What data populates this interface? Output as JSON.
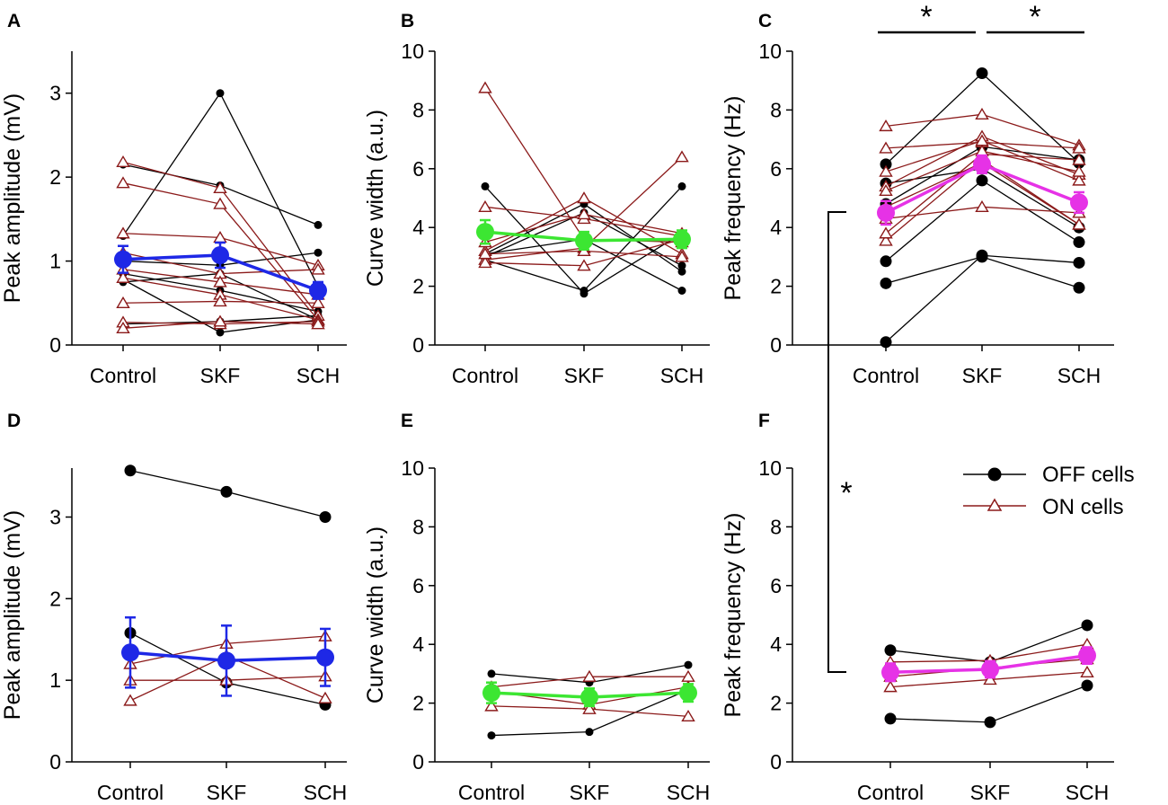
{
  "figure_title": "",
  "colors": {
    "off": "#000000",
    "on": "#8B1A1A",
    "mean_amplitude": "#1E28E6",
    "mean_width": "#3CE632",
    "mean_frequency": "#E632E6"
  },
  "legend": {
    "off_label": "OFF cells",
    "on_label": "ON cells"
  },
  "significance": {
    "star": "*"
  },
  "chart_data": [
    {
      "id": "A",
      "letter": "A",
      "type": "line",
      "categories": [
        "Control",
        "SKF",
        "SCH"
      ],
      "ylabel": "Peak amplitude (mV)",
      "ylim": [
        0,
        3.5
      ],
      "yticks": [
        0,
        1,
        2,
        3
      ],
      "ytick_labels": [
        "0",
        "1",
        "2",
        "3"
      ],
      "off_series": [
        [
          1.3,
          3.0,
          0.7
        ],
        [
          2.15,
          1.9,
          1.43
        ],
        [
          0.78,
          0.15,
          0.3
        ],
        [
          1.0,
          0.95,
          1.1
        ],
        [
          0.85,
          0.65,
          0.4
        ],
        [
          0.75,
          0.85,
          0.3
        ],
        [
          0.25,
          0.28,
          0.35
        ]
      ],
      "on_series": [
        [
          2.18,
          1.87,
          0.35
        ],
        [
          1.93,
          1.68,
          0.3
        ],
        [
          1.33,
          1.28,
          0.95
        ],
        [
          1.1,
          0.85,
          0.9
        ],
        [
          0.9,
          0.75,
          0.6
        ],
        [
          0.8,
          0.6,
          0.3
        ],
        [
          0.5,
          0.52,
          0.5
        ],
        [
          0.27,
          0.25,
          0.28
        ],
        [
          0.2,
          0.28,
          0.25
        ]
      ],
      "mean": [
        1.02,
        1.07,
        0.65
      ],
      "sem": [
        0.16,
        0.15,
        0.1
      ]
    },
    {
      "id": "B",
      "letter": "B",
      "type": "line",
      "categories": [
        "Control",
        "SKF",
        "SCH"
      ],
      "ylabel": "Curve width (a.u.)",
      "ylim": [
        0,
        10
      ],
      "yticks": [
        0,
        2,
        4,
        6,
        8,
        10
      ],
      "ytick_labels": [
        "0",
        "2",
        "4",
        "6",
        "8",
        "10"
      ],
      "off_series": [
        [
          5.4,
          1.75,
          3.8
        ],
        [
          3.1,
          4.8,
          2.5
        ],
        [
          2.9,
          1.85,
          5.4
        ],
        [
          3.1,
          3.6,
          1.85
        ],
        [
          3.0,
          4.5,
          2.7
        ]
      ],
      "on_series": [
        [
          8.75,
          3.6,
          3.5
        ],
        [
          4.7,
          4.3,
          3.7
        ],
        [
          3.2,
          5.0,
          3.1
        ],
        [
          2.9,
          3.3,
          6.4
        ],
        [
          2.8,
          2.7,
          3.6
        ],
        [
          3.1,
          3.2,
          3.0
        ],
        [
          3.5,
          4.45,
          3.8
        ]
      ],
      "mean": [
        3.85,
        3.55,
        3.6
      ],
      "sem": [
        0.4,
        0.3,
        0.3
      ]
    },
    {
      "id": "C",
      "letter": "C",
      "type": "line",
      "categories": [
        "Control",
        "SKF",
        "SCH"
      ],
      "ylabel": "Peak frequency (Hz)",
      "ylim": [
        0,
        10
      ],
      "yticks": [
        0,
        2,
        4,
        6,
        8,
        10
      ],
      "ytick_labels": [
        "0",
        "2",
        "4",
        "6",
        "8",
        "10"
      ],
      "off_series": [
        [
          0.1,
          3.05,
          2.8
        ],
        [
          2.1,
          3.0,
          1.95
        ],
        [
          2.85,
          5.6,
          3.5
        ],
        [
          4.8,
          6.75,
          6.3
        ],
        [
          6.15,
          9.25,
          6.2
        ],
        [
          5.5,
          6.0,
          4.0
        ]
      ],
      "on_series": [
        [
          7.45,
          7.85,
          6.8
        ],
        [
          6.7,
          6.9,
          6.7
        ],
        [
          5.4,
          7.1,
          5.8
        ],
        [
          4.3,
          4.7,
          4.5
        ],
        [
          3.55,
          6.3,
          4.1
        ],
        [
          3.8,
          6.5,
          6.3
        ],
        [
          5.9,
          6.95,
          5.6
        ],
        [
          4.7,
          6.2,
          4.1
        ],
        [
          5.25,
          6.6,
          5.9
        ]
      ],
      "mean": [
        4.5,
        6.15,
        4.85
      ],
      "sem": [
        0.4,
        0.3,
        0.35
      ]
    },
    {
      "id": "D",
      "letter": "D",
      "type": "line",
      "categories": [
        "Control",
        "SKF",
        "SCH"
      ],
      "ylabel": "Peak amplitude (mV)",
      "ylim": [
        0,
        3.6
      ],
      "yticks": [
        0,
        1,
        2,
        3
      ],
      "ytick_labels": [
        "0",
        "1",
        "2",
        "3"
      ],
      "off_series": [
        [
          3.57,
          3.31,
          3.0
        ],
        [
          1.58,
          0.97,
          0.7
        ]
      ],
      "on_series": [
        [
          1.2,
          1.45,
          1.54
        ],
        [
          1.0,
          1.0,
          1.05
        ],
        [
          0.75,
          1.3,
          0.78
        ]
      ],
      "mean": [
        1.34,
        1.24,
        1.28
      ],
      "sem": [
        0.43,
        0.43,
        0.35
      ]
    },
    {
      "id": "E",
      "letter": "E",
      "type": "line",
      "categories": [
        "Control",
        "SKF",
        "SCH"
      ],
      "ylabel": "Curve width (a.u.)",
      "ylim": [
        0,
        10
      ],
      "yticks": [
        0,
        2,
        4,
        6,
        8,
        10
      ],
      "ytick_labels": [
        "0",
        "2",
        "4",
        "6",
        "8",
        "10"
      ],
      "off_series": [
        [
          3.0,
          2.7,
          3.3
        ],
        [
          0.9,
          1.02,
          2.45
        ]
      ],
      "on_series": [
        [
          2.55,
          2.9,
          2.9
        ],
        [
          2.4,
          1.95,
          2.55
        ],
        [
          1.9,
          1.8,
          1.55
        ]
      ],
      "mean": [
        2.35,
        2.2,
        2.35
      ],
      "sem": [
        0.35,
        0.3,
        0.3
      ]
    },
    {
      "id": "F",
      "letter": "F",
      "type": "line",
      "categories": [
        "Control",
        "SKF",
        "SCH"
      ],
      "ylabel": "Peak frequency (Hz)",
      "ylim": [
        0,
        10
      ],
      "yticks": [
        0,
        2,
        4,
        6,
        8,
        10
      ],
      "ytick_labels": [
        "0",
        "2",
        "4",
        "6",
        "8",
        "10"
      ],
      "off_series": [
        [
          3.8,
          3.4,
          4.65
        ],
        [
          1.47,
          1.35,
          2.6
        ]
      ],
      "on_series": [
        [
          3.4,
          3.45,
          4.0
        ],
        [
          2.55,
          2.8,
          3.05
        ],
        [
          2.9,
          3.2,
          3.5
        ]
      ],
      "mean": [
        3.05,
        3.15,
        3.62
      ],
      "sem": [
        0.3,
        0.28,
        0.28
      ]
    }
  ]
}
